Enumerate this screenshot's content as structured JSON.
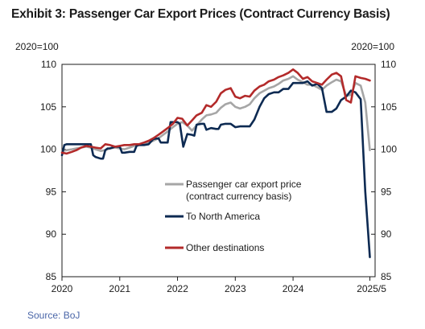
{
  "title": "Exhibit 3: Passenger Car Export Prices (Contract Currency Basis)",
  "source": "Source: BoJ",
  "chart_data": {
    "type": "line",
    "title": "Exhibit 3: Passenger Car Export Prices (Contract Currency Basis)",
    "y_unit_left": "2020=100",
    "y_unit_right": "2020=100",
    "ylim": [
      85,
      110
    ],
    "yticks": [
      85,
      90,
      95,
      100,
      105,
      110
    ],
    "xlim": [
      2020.0,
      2025.42
    ],
    "xticks": [
      {
        "value": 2020,
        "label": "2020"
      },
      {
        "value": 2021,
        "label": "2021"
      },
      {
        "value": 2022,
        "label": "2022"
      },
      {
        "value": 2023,
        "label": "2023"
      },
      {
        "value": 2024,
        "label": "2024"
      },
      {
        "value": 2025.33,
        "label": "2025/5"
      }
    ],
    "grid": false,
    "legend_placement": "lower-middle",
    "series": [
      {
        "name": "Passenger car export price\n(contract currency basis)",
        "color": "#a6a6a6",
        "points": [
          [
            2020.0,
            99.8
          ],
          [
            2020.08,
            99.9
          ],
          [
            2020.17,
            100.0
          ],
          [
            2020.25,
            100.1
          ],
          [
            2020.33,
            100.2
          ],
          [
            2020.42,
            100.3
          ],
          [
            2020.5,
            100.2
          ],
          [
            2020.58,
            100.0
          ],
          [
            2020.67,
            99.8
          ],
          [
            2020.75,
            99.9
          ],
          [
            2020.83,
            100.1
          ],
          [
            2020.92,
            100.2
          ],
          [
            2021.0,
            100.1
          ],
          [
            2021.08,
            100.0
          ],
          [
            2021.17,
            100.2
          ],
          [
            2021.25,
            100.4
          ],
          [
            2021.33,
            100.5
          ],
          [
            2021.42,
            100.6
          ],
          [
            2021.5,
            100.8
          ],
          [
            2021.58,
            101.0
          ],
          [
            2021.67,
            101.3
          ],
          [
            2021.75,
            101.7
          ],
          [
            2021.83,
            102.1
          ],
          [
            2021.92,
            102.6
          ],
          [
            2022.0,
            103.0
          ],
          [
            2022.08,
            103.2
          ],
          [
            2022.17,
            102.8
          ],
          [
            2022.25,
            102.2
          ],
          [
            2022.33,
            102.8
          ],
          [
            2022.42,
            103.5
          ],
          [
            2022.5,
            104.0
          ],
          [
            2022.58,
            104.1
          ],
          [
            2022.67,
            104.3
          ],
          [
            2022.75,
            104.9
          ],
          [
            2022.83,
            105.3
          ],
          [
            2022.92,
            105.5
          ],
          [
            2023.0,
            105.0
          ],
          [
            2023.08,
            104.8
          ],
          [
            2023.17,
            105.0
          ],
          [
            2023.25,
            105.3
          ],
          [
            2023.33,
            106.0
          ],
          [
            2023.42,
            106.6
          ],
          [
            2023.5,
            106.9
          ],
          [
            2023.58,
            107.2
          ],
          [
            2023.67,
            107.4
          ],
          [
            2023.75,
            107.7
          ],
          [
            2023.83,
            108.1
          ],
          [
            2023.92,
            108.3
          ],
          [
            2024.0,
            108.6
          ],
          [
            2024.08,
            108.2
          ],
          [
            2024.17,
            107.9
          ],
          [
            2024.25,
            107.6
          ],
          [
            2024.33,
            107.6
          ],
          [
            2024.42,
            107.3
          ],
          [
            2024.5,
            107.0
          ],
          [
            2024.58,
            107.5
          ],
          [
            2024.67,
            107.9
          ],
          [
            2024.75,
            108.2
          ],
          [
            2024.83,
            108.0
          ],
          [
            2024.92,
            106.3
          ],
          [
            2025.0,
            106.4
          ],
          [
            2025.08,
            107.8
          ],
          [
            2025.17,
            107.5
          ],
          [
            2025.25,
            105.5
          ],
          [
            2025.33,
            99.9
          ]
        ]
      },
      {
        "name": "To North America",
        "color": "#0d2a52",
        "points": [
          [
            2020.0,
            99.3
          ],
          [
            2020.04,
            100.5
          ],
          [
            2020.08,
            100.6
          ],
          [
            2020.17,
            100.6
          ],
          [
            2020.25,
            100.6
          ],
          [
            2020.33,
            100.6
          ],
          [
            2020.42,
            100.6
          ],
          [
            2020.5,
            100.6
          ],
          [
            2020.54,
            99.3
          ],
          [
            2020.58,
            99.1
          ],
          [
            2020.67,
            98.9
          ],
          [
            2020.71,
            98.9
          ],
          [
            2020.75,
            99.9
          ],
          [
            2020.79,
            100.1
          ],
          [
            2020.83,
            100.1
          ],
          [
            2020.92,
            100.3
          ],
          [
            2021.0,
            100.3
          ],
          [
            2021.04,
            99.6
          ],
          [
            2021.08,
            99.6
          ],
          [
            2021.17,
            99.7
          ],
          [
            2021.25,
            99.7
          ],
          [
            2021.29,
            100.4
          ],
          [
            2021.33,
            100.5
          ],
          [
            2021.42,
            100.5
          ],
          [
            2021.5,
            100.6
          ],
          [
            2021.58,
            101.2
          ],
          [
            2021.67,
            101.3
          ],
          [
            2021.71,
            100.8
          ],
          [
            2021.75,
            100.8
          ],
          [
            2021.83,
            100.8
          ],
          [
            2021.88,
            103.2
          ],
          [
            2021.92,
            103.2
          ],
          [
            2022.0,
            103.2
          ],
          [
            2022.04,
            103.0
          ],
          [
            2022.1,
            100.3
          ],
          [
            2022.17,
            101.8
          ],
          [
            2022.25,
            101.7
          ],
          [
            2022.29,
            101.6
          ],
          [
            2022.33,
            102.9
          ],
          [
            2022.42,
            103.0
          ],
          [
            2022.46,
            103.0
          ],
          [
            2022.5,
            102.3
          ],
          [
            2022.58,
            102.5
          ],
          [
            2022.67,
            102.4
          ],
          [
            2022.71,
            102.4
          ],
          [
            2022.75,
            102.9
          ],
          [
            2022.83,
            103.0
          ],
          [
            2022.92,
            103.0
          ],
          [
            2023.0,
            102.6
          ],
          [
            2023.08,
            102.7
          ],
          [
            2023.17,
            102.7
          ],
          [
            2023.25,
            102.7
          ],
          [
            2023.33,
            103.5
          ],
          [
            2023.42,
            105.0
          ],
          [
            2023.5,
            106.0
          ],
          [
            2023.58,
            106.5
          ],
          [
            2023.67,
            106.7
          ],
          [
            2023.75,
            106.7
          ],
          [
            2023.83,
            107.1
          ],
          [
            2023.92,
            107.1
          ],
          [
            2024.0,
            107.8
          ],
          [
            2024.08,
            107.8
          ],
          [
            2024.17,
            107.8
          ],
          [
            2024.25,
            108.0
          ],
          [
            2024.33,
            107.5
          ],
          [
            2024.42,
            107.7
          ],
          [
            2024.5,
            107.2
          ],
          [
            2024.58,
            104.4
          ],
          [
            2024.67,
            104.4
          ],
          [
            2024.75,
            104.8
          ],
          [
            2024.83,
            105.8
          ],
          [
            2024.92,
            106.2
          ],
          [
            2025.0,
            106.9
          ],
          [
            2025.08,
            106.7
          ],
          [
            2025.17,
            105.9
          ],
          [
            2025.25,
            95.0
          ],
          [
            2025.33,
            87.3
          ]
        ]
      },
      {
        "name": "Other destinations",
        "color": "#b32a2a",
        "points": [
          [
            2020.0,
            99.6
          ],
          [
            2020.08,
            99.5
          ],
          [
            2020.17,
            99.7
          ],
          [
            2020.25,
            99.9
          ],
          [
            2020.33,
            100.2
          ],
          [
            2020.42,
            100.4
          ],
          [
            2020.5,
            100.3
          ],
          [
            2020.58,
            100.2
          ],
          [
            2020.67,
            100.1
          ],
          [
            2020.75,
            100.6
          ],
          [
            2020.83,
            100.5
          ],
          [
            2020.92,
            100.3
          ],
          [
            2021.0,
            100.4
          ],
          [
            2021.08,
            100.5
          ],
          [
            2021.17,
            100.5
          ],
          [
            2021.25,
            100.6
          ],
          [
            2021.33,
            100.6
          ],
          [
            2021.42,
            100.8
          ],
          [
            2021.5,
            101.0
          ],
          [
            2021.58,
            101.3
          ],
          [
            2021.67,
            101.7
          ],
          [
            2021.75,
            102.1
          ],
          [
            2021.83,
            102.5
          ],
          [
            2021.92,
            103.0
          ],
          [
            2022.0,
            103.7
          ],
          [
            2022.08,
            103.6
          ],
          [
            2022.17,
            102.8
          ],
          [
            2022.25,
            103.4
          ],
          [
            2022.33,
            104.0
          ],
          [
            2022.42,
            104.3
          ],
          [
            2022.5,
            105.2
          ],
          [
            2022.58,
            105.0
          ],
          [
            2022.67,
            105.6
          ],
          [
            2022.75,
            106.6
          ],
          [
            2022.83,
            107.0
          ],
          [
            2022.92,
            107.2
          ],
          [
            2023.0,
            106.2
          ],
          [
            2023.08,
            106.0
          ],
          [
            2023.17,
            106.3
          ],
          [
            2023.25,
            106.2
          ],
          [
            2023.33,
            106.9
          ],
          [
            2023.42,
            107.4
          ],
          [
            2023.5,
            107.6
          ],
          [
            2023.58,
            108.0
          ],
          [
            2023.67,
            108.2
          ],
          [
            2023.75,
            108.5
          ],
          [
            2023.83,
            108.7
          ],
          [
            2023.92,
            109.0
          ],
          [
            2024.0,
            109.4
          ],
          [
            2024.08,
            109.0
          ],
          [
            2024.17,
            108.3
          ],
          [
            2024.25,
            108.5
          ],
          [
            2024.33,
            108.0
          ],
          [
            2024.42,
            107.8
          ],
          [
            2024.5,
            107.6
          ],
          [
            2024.58,
            108.2
          ],
          [
            2024.67,
            108.8
          ],
          [
            2024.75,
            109.0
          ],
          [
            2024.83,
            108.6
          ],
          [
            2024.92,
            105.8
          ],
          [
            2025.0,
            105.5
          ],
          [
            2025.08,
            108.6
          ],
          [
            2025.17,
            108.4
          ],
          [
            2025.25,
            108.3
          ],
          [
            2025.33,
            108.1
          ]
        ]
      }
    ]
  }
}
